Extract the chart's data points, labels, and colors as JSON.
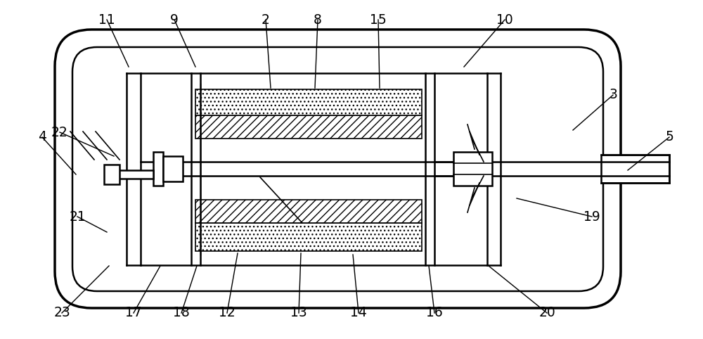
{
  "bg_color": "#ffffff",
  "lw_outer": 2.5,
  "lw_main": 1.8,
  "lw_thin": 1.2,
  "fig_width": 10.0,
  "fig_height": 4.82,
  "labels_data": {
    "11": [
      152,
      28,
      183,
      95
    ],
    "9": [
      248,
      28,
      278,
      95
    ],
    "2": [
      378,
      28,
      385,
      125
    ],
    "8": [
      452,
      28,
      448,
      125
    ],
    "15": [
      538,
      28,
      540,
      125
    ],
    "10": [
      718,
      28,
      660,
      95
    ],
    "3": [
      872,
      135,
      815,
      185
    ],
    "5": [
      952,
      195,
      893,
      242
    ],
    "4": [
      60,
      195,
      108,
      248
    ],
    "22": [
      85,
      188,
      162,
      222
    ],
    "21": [
      110,
      308,
      152,
      330
    ],
    "23": [
      88,
      445,
      155,
      378
    ],
    "17": [
      190,
      445,
      228,
      378
    ],
    "18": [
      258,
      445,
      280,
      378
    ],
    "12": [
      323,
      445,
      338,
      360
    ],
    "13": [
      425,
      445,
      428,
      360
    ],
    "14": [
      510,
      445,
      502,
      362
    ],
    "16": [
      618,
      445,
      610,
      378
    ],
    "20": [
      778,
      445,
      695,
      378
    ],
    "19": [
      842,
      308,
      735,
      282
    ]
  }
}
